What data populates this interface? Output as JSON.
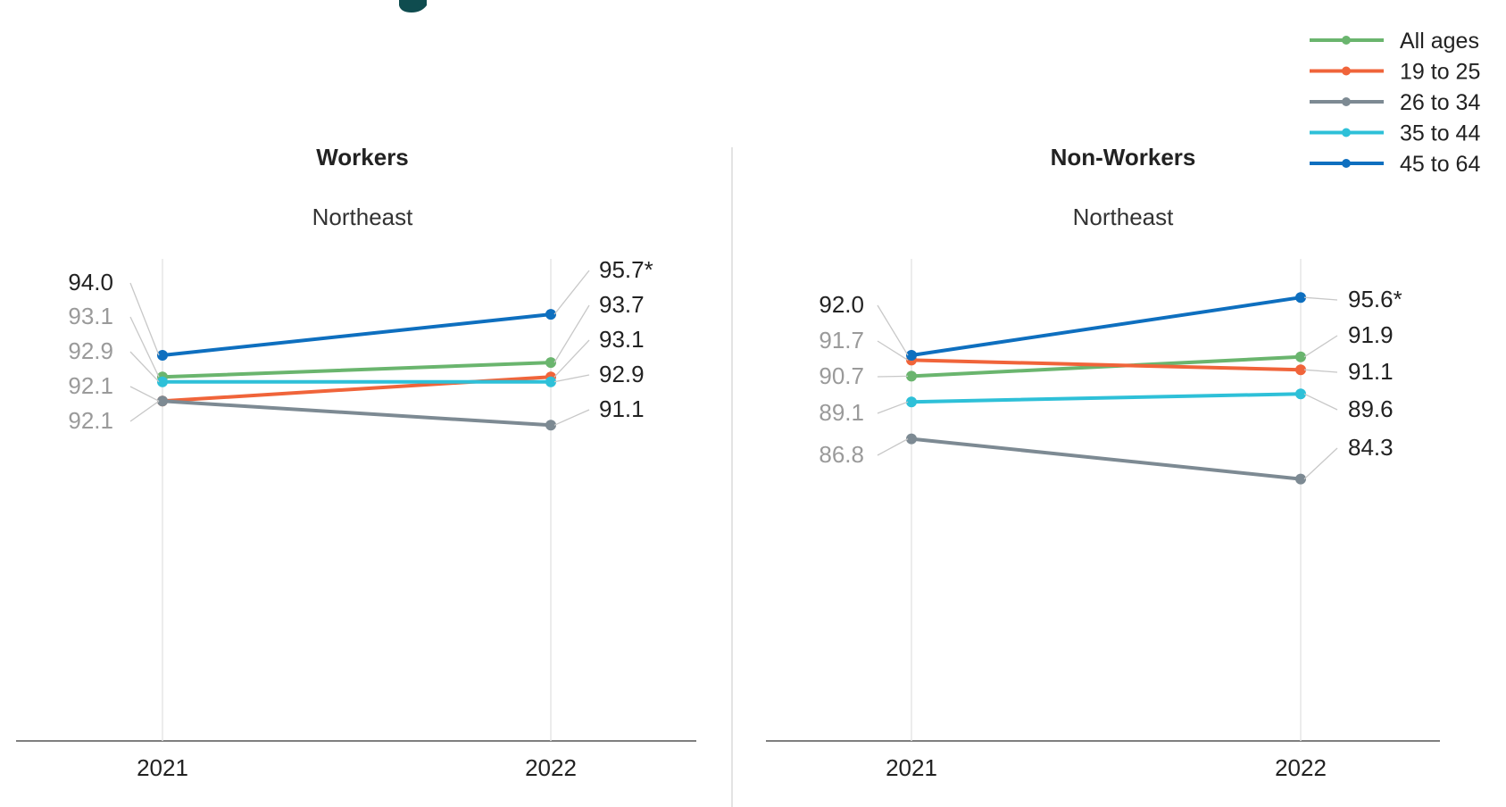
{
  "colors": {
    "All ages": "#6ab56e",
    "19 to 25": "#f0643a",
    "26 to 34": "#7d8a93",
    "35 to 44": "#2ec0d8",
    "45 to 64": "#0e6fbf"
  },
  "legend": [
    "All ages",
    "19 to 25",
    "26 to 34",
    "35 to 44",
    "45 to 64"
  ],
  "chart_data": [
    {
      "type": "line",
      "title": "Workers",
      "subtitle": "Northeast",
      "categories": [
        "2021",
        "2022"
      ],
      "ylim": [
        78,
        98
      ],
      "grid": false,
      "legend_position": "top-right",
      "series": [
        {
          "name": "All ages",
          "values": [
            93.1,
            93.7
          ]
        },
        {
          "name": "19 to 25",
          "values": [
            92.1,
            93.1
          ]
        },
        {
          "name": "26 to 34",
          "values": [
            92.1,
            91.1
          ]
        },
        {
          "name": "35 to 44",
          "values": [
            92.9,
            92.9
          ]
        },
        {
          "name": "45 to 64",
          "values": [
            94.0,
            95.7
          ]
        }
      ],
      "labels_2021": [
        "94.0",
        "93.1",
        "92.9",
        "92.1",
        "92.1"
      ],
      "labels_2022": [
        "95.7*",
        "93.7",
        "93.1",
        "92.9",
        "91.1"
      ]
    },
    {
      "type": "line",
      "title": "Non-Workers",
      "subtitle": "Northeast",
      "categories": [
        "2021",
        "2022"
      ],
      "ylim": [
        68,
        98
      ],
      "grid": false,
      "legend_position": "top-right",
      "series": [
        {
          "name": "All ages",
          "values": [
            90.7,
            91.9
          ]
        },
        {
          "name": "19 to 25",
          "values": [
            91.7,
            91.1
          ]
        },
        {
          "name": "26 to 34",
          "values": [
            86.8,
            84.3
          ]
        },
        {
          "name": "35 to 44",
          "values": [
            89.1,
            89.6
          ]
        },
        {
          "name": "45 to 64",
          "values": [
            92.0,
            95.6
          ]
        }
      ],
      "labels_2021": [
        "92.0",
        "91.7",
        "90.7",
        "89.1",
        "86.8"
      ],
      "labels_2022": [
        "95.6*",
        "91.9",
        "91.1",
        "89.6",
        "84.3"
      ]
    }
  ]
}
